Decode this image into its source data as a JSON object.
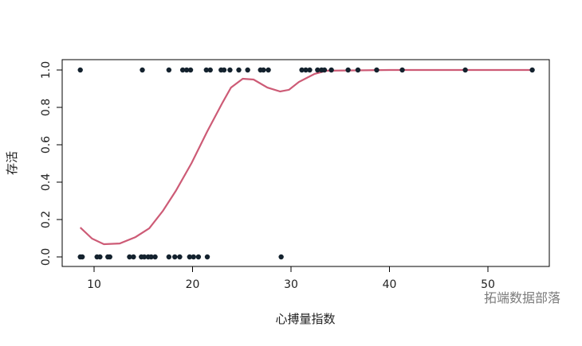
{
  "chart_data": {
    "type": "scatter",
    "title": "",
    "xlabel": "心搏量指数",
    "ylabel": "存活",
    "xlim": [
      6.8,
      56.2
    ],
    "ylim": [
      -0.05,
      1.05
    ],
    "xticks": [
      10,
      20,
      30,
      40,
      50
    ],
    "yticks": [
      "0.0",
      "0.2",
      "0.4",
      "0.6",
      "0.8",
      "1.0"
    ],
    "grid": false,
    "point_color": "#14222e",
    "curve_color": "#cd5b76",
    "points_y1": [
      8.6,
      14.9,
      17.6,
      19.0,
      19.4,
      19.8,
      21.4,
      21.8,
      22.9,
      23.2,
      23.8,
      24.7,
      25.6,
      26.9,
      27.2,
      27.7,
      31.1,
      31.5,
      31.9,
      32.7,
      33.1,
      33.4,
      34.1,
      35.8,
      36.8,
      38.7,
      41.3,
      47.7,
      54.5
    ],
    "points_y0": [
      8.6,
      8.8,
      10.3,
      10.6,
      11.4,
      11.6,
      13.6,
      14.0,
      14.8,
      15.1,
      15.5,
      15.8,
      16.2,
      17.6,
      18.2,
      18.7,
      19.7,
      20.1,
      20.6,
      21.5,
      29.0
    ],
    "smooth_curve": {
      "x": [
        8.6,
        9.8,
        11.0,
        12.6,
        14.2,
        15.6,
        17.0,
        18.3,
        19.9,
        21.5,
        23.0,
        23.9,
        25.1,
        26.2,
        27.6,
        28.9,
        29.8,
        30.8,
        32.4,
        33.6,
        40,
        54.5
      ],
      "y": [
        0.157,
        0.098,
        0.068,
        0.072,
        0.106,
        0.153,
        0.247,
        0.353,
        0.502,
        0.672,
        0.821,
        0.906,
        0.953,
        0.949,
        0.906,
        0.885,
        0.894,
        0.936,
        0.979,
        0.996,
        1.0,
        1.0
      ]
    }
  },
  "watermark": "拓端数据部落"
}
